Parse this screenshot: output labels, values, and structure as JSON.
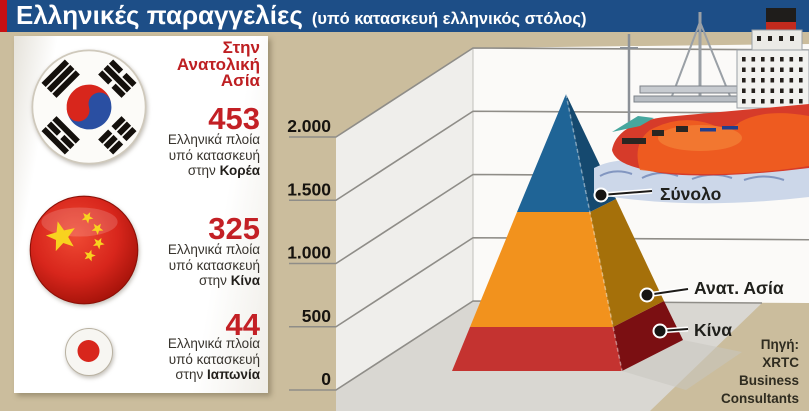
{
  "title": {
    "main": "Ελληνικές παραγγελίες",
    "sub": "(υπό κατασκευή ελληνικός στόλος)"
  },
  "panel": {
    "heading": "Στην\nΑνατολική\nΑσία",
    "rows": [
      {
        "flag": "korea",
        "flag_icon": "south-korea-flag-icon",
        "value": "453",
        "lines": [
          "Ελληνικά πλοία",
          "υπό κατασκευή"
        ],
        "prefix": "στην",
        "country": "Κορέα"
      },
      {
        "flag": "china",
        "flag_icon": "china-flag-icon",
        "value": "325",
        "lines": [
          "Ελληνικά πλοία",
          "υπό κατασκευή"
        ],
        "prefix": "στην",
        "country": "Κίνα"
      },
      {
        "flag": "japan",
        "flag_icon": "japan-flag-icon",
        "value": "44",
        "lines": [
          "Ελληνικά πλοία",
          "υπό κατασκευή"
        ],
        "prefix": "στην",
        "country": "Ιαπωνία"
      }
    ]
  },
  "chart_data": {
    "type": "pyramid",
    "title": "Ελληνικές παραγγελίες (υπό κατασκευή ελληνικός στόλος)",
    "y_ticks": [
      "0",
      "500",
      "1.000",
      "1.500",
      "2.000"
    ],
    "ylim": [
      0,
      2000
    ],
    "grid": true,
    "legend_position": "right-callouts",
    "layers": [
      {
        "label": "Κίνα",
        "front_color": "#c43330",
        "side_color": "#7b0f12",
        "cumulative_top_est": 350
      },
      {
        "label": "Ανατ. Ασία",
        "front_color": "#f2921d",
        "side_color": "#a5700a",
        "cumulative_top_est": 1250
      },
      {
        "label": "Σύνολο",
        "front_color": "#1f6496",
        "side_color": "#15496f",
        "cumulative_top_est": 2200
      }
    ],
    "ship_counts": [
      {
        "label": "Κορέα",
        "value": 453
      },
      {
        "label": "Κίνα",
        "value": 325
      },
      {
        "label": "Ιαπωνία",
        "value": 44
      }
    ]
  },
  "source": {
    "lines": [
      "Πηγή:",
      "XRTC",
      "Business",
      "Consultants"
    ]
  },
  "colors": {
    "title_bar": "#1d4e87",
    "title_strip": "#c90f12",
    "background": "#cbbd9d",
    "accent_red": "#c32025",
    "wall_left": "#efeeeb",
    "wall_back": "#fbfaf8",
    "floor": "#d9d7d2",
    "gridline": "#8f8d88"
  }
}
